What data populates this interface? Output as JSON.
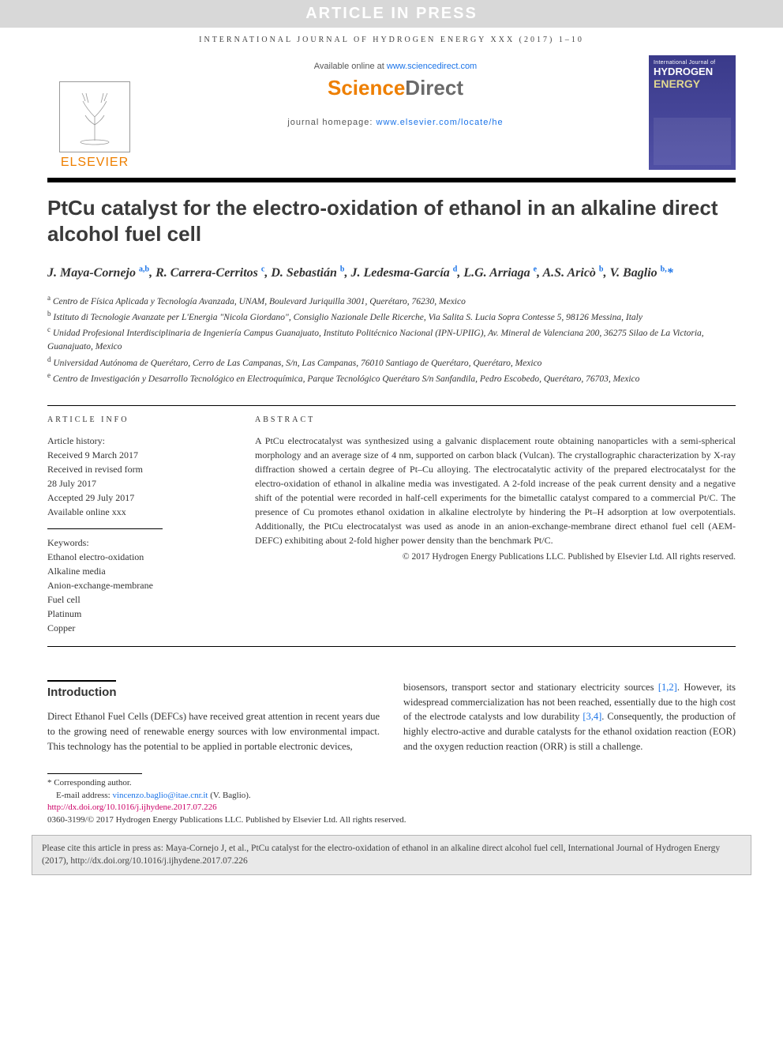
{
  "banner": "ARTICLE IN PRESS",
  "running_head": "INTERNATIONAL JOURNAL OF HYDROGEN ENERGY XXX (2017) 1–10",
  "masthead": {
    "publisher": "ELSEVIER",
    "available_prefix": "Available online at ",
    "available_link": "www.sciencedirect.com",
    "sd_sci": "Science",
    "sd_dir": "Direct",
    "homepage_prefix": "journal homepage: ",
    "homepage_link": "www.elsevier.com/locate/he",
    "cover_line1": "International Journal of",
    "cover_line2": "HYDROGEN",
    "cover_line3": "ENERGY"
  },
  "title": "PtCu catalyst for the electro-oxidation of ethanol in an alkaline direct alcohol fuel cell",
  "authors_html": "J. Maya-Cornejo <sup>a,b</sup>, R. Carrera-Cerritos <sup>c</sup>, D. Sebastián <sup>b</sup>, J. Ledesma-García <sup>d</sup>, L.G. Arriaga <sup>e</sup>, A.S. Aricò <sup>b</sup>, V. Baglio <sup>b,</sup><span class='star'>*</span>",
  "affiliations": [
    {
      "s": "a",
      "t": "Centro de Física Aplicada y Tecnología Avanzada, UNAM, Boulevard Juriquilla 3001, Querétaro, 76230, Mexico"
    },
    {
      "s": "b",
      "t": "Istituto di Tecnologie Avanzate per L'Energia \"Nicola Giordano\", Consiglio Nazionale Delle Ricerche, Via Salita S. Lucia Sopra Contesse 5, 98126 Messina, Italy"
    },
    {
      "s": "c",
      "t": "Unidad Profesional Interdisciplinaria de Ingeniería Campus Guanajuato, Instituto Politécnico Nacional (IPN-UPIIG), Av. Mineral de Valenciana 200, 36275 Silao de La Victoria, Guanajuato, Mexico"
    },
    {
      "s": "d",
      "t": "Universidad Autónoma de Querétaro, Cerro de Las Campanas, S/n, Las Campanas, 76010 Santiago de Querétaro, Querétaro, Mexico"
    },
    {
      "s": "e",
      "t": "Centro de Investigación y Desarrollo Tecnológico en Electroquímica, Parque Tecnológico Querétaro S/n Sanfandila, Pedro Escobedo, Querétaro, 76703, Mexico"
    }
  ],
  "info_label": "ARTICLE INFO",
  "abs_label": "ABSTRACT",
  "history_label": "Article history:",
  "history": [
    "Received 9 March 2017",
    "Received in revised form",
    "28 July 2017",
    "Accepted 29 July 2017",
    "Available online xxx"
  ],
  "kw_label": "Keywords:",
  "keywords": [
    "Ethanol electro-oxidation",
    "Alkaline media",
    "Anion-exchange-membrane",
    "Fuel cell",
    "Platinum",
    "Copper"
  ],
  "abstract": "A PtCu electrocatalyst was synthesized using a galvanic displacement route obtaining nanoparticles with a semi-spherical morphology and an average size of 4 nm, supported on carbon black (Vulcan). The crystallographic characterization by X-ray diffraction showed a certain degree of Pt–Cu alloying. The electrocatalytic activity of the prepared electrocatalyst for the electro-oxidation of ethanol in alkaline media was investigated. A 2-fold increase of the peak current density and a negative shift of the potential were recorded in half-cell experiments for the bimetallic catalyst compared to a commercial Pt/C. The presence of Cu promotes ethanol oxidation in alkaline electrolyte by hindering the Pt–H adsorption at low overpotentials. Additionally, the PtCu electrocatalyst was used as anode in an anion-exchange-membrane direct ethanol fuel cell (AEM-DEFC) exhibiting about 2-fold higher power density than the benchmark Pt/C.",
  "copyright": "© 2017 Hydrogen Energy Publications LLC. Published by Elsevier Ltd. All rights reserved.",
  "intro_heading": "Introduction",
  "intro_col1": "Direct Ethanol Fuel Cells (DEFCs) have received great attention in recent years due to the growing need of renewable energy sources with low environmental impact. This technology has the potential to be applied in portable electronic devices,",
  "intro_col2_a": "biosensors, transport sector and stationary electricity sources ",
  "intro_ref1": "[1,2]",
  "intro_col2_b": ". However, its widespread commercialization has not been reached, essentially due to the high cost of the electrode catalysts and low durability ",
  "intro_ref2": "[3,4]",
  "intro_col2_c": ". Consequently, the production of highly electro-active and durable catalysts for the ethanol oxidation reaction (EOR) and the oxygen reduction reaction (ORR) is still a challenge.",
  "footnotes": {
    "corr": "* Corresponding author.",
    "email_label": "E-mail address: ",
    "email": "vincenzo.baglio@itae.cnr.it",
    "email_tail": " (V. Baglio).",
    "doi": "http://dx.doi.org/10.1016/j.ijhydene.2017.07.226",
    "issn": "0360-3199/© 2017 Hydrogen Energy Publications LLC. Published by Elsevier Ltd. All rights reserved."
  },
  "citebox": "Please cite this article in press as: Maya-Cornejo J, et al., PtCu catalyst for the electro-oxidation of ethanol in an alkaline direct alcohol fuel cell, International Journal of Hydrogen Energy (2017), http://dx.doi.org/10.1016/j.ijhydene.2017.07.226",
  "colors": {
    "orange": "#ee7f00",
    "link": "#1a73e8",
    "doi": "#cc0066",
    "cover_bg": "#4a4aa0"
  }
}
